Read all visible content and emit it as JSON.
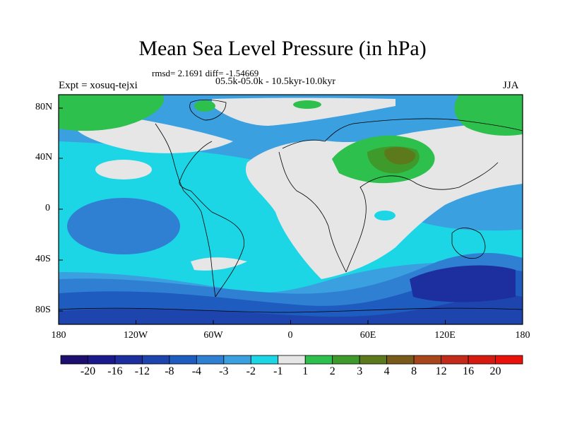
{
  "title": "Mean Sea Level Pressure (in hPa)",
  "stats": "rmsd= 2.1691 diff= -1.54669",
  "period": "05.5k-05.0k - 10.5kyr-10.0kyr",
  "experiment": "Expt = xosuq-tejxi",
  "season": "JJA",
  "axes": {
    "y_ticks": [
      "80N",
      "40N",
      "0",
      "40S",
      "80S"
    ],
    "x_ticks": [
      "180",
      "120W",
      "60W",
      "0",
      "60E",
      "120E",
      "180"
    ]
  },
  "colorbar": {
    "labels": [
      "-20",
      "-16",
      "-12",
      "-8",
      "-4",
      "-3",
      "-2",
      "-1",
      "1",
      "2",
      "3",
      "4",
      "8",
      "12",
      "16",
      "20"
    ],
    "colors": [
      "#1c0f6e",
      "#1a1a8c",
      "#1d2f9e",
      "#1e44ad",
      "#1f5cc0",
      "#2f80d3",
      "#3aa0e0",
      "#1cd6e6",
      "#e6e6e6",
      "#2ec04d",
      "#3f9a2c",
      "#5c7a1c",
      "#7a5a1a",
      "#a8451a",
      "#c32a1a",
      "#d61a10",
      "#e8120a"
    ]
  }
}
